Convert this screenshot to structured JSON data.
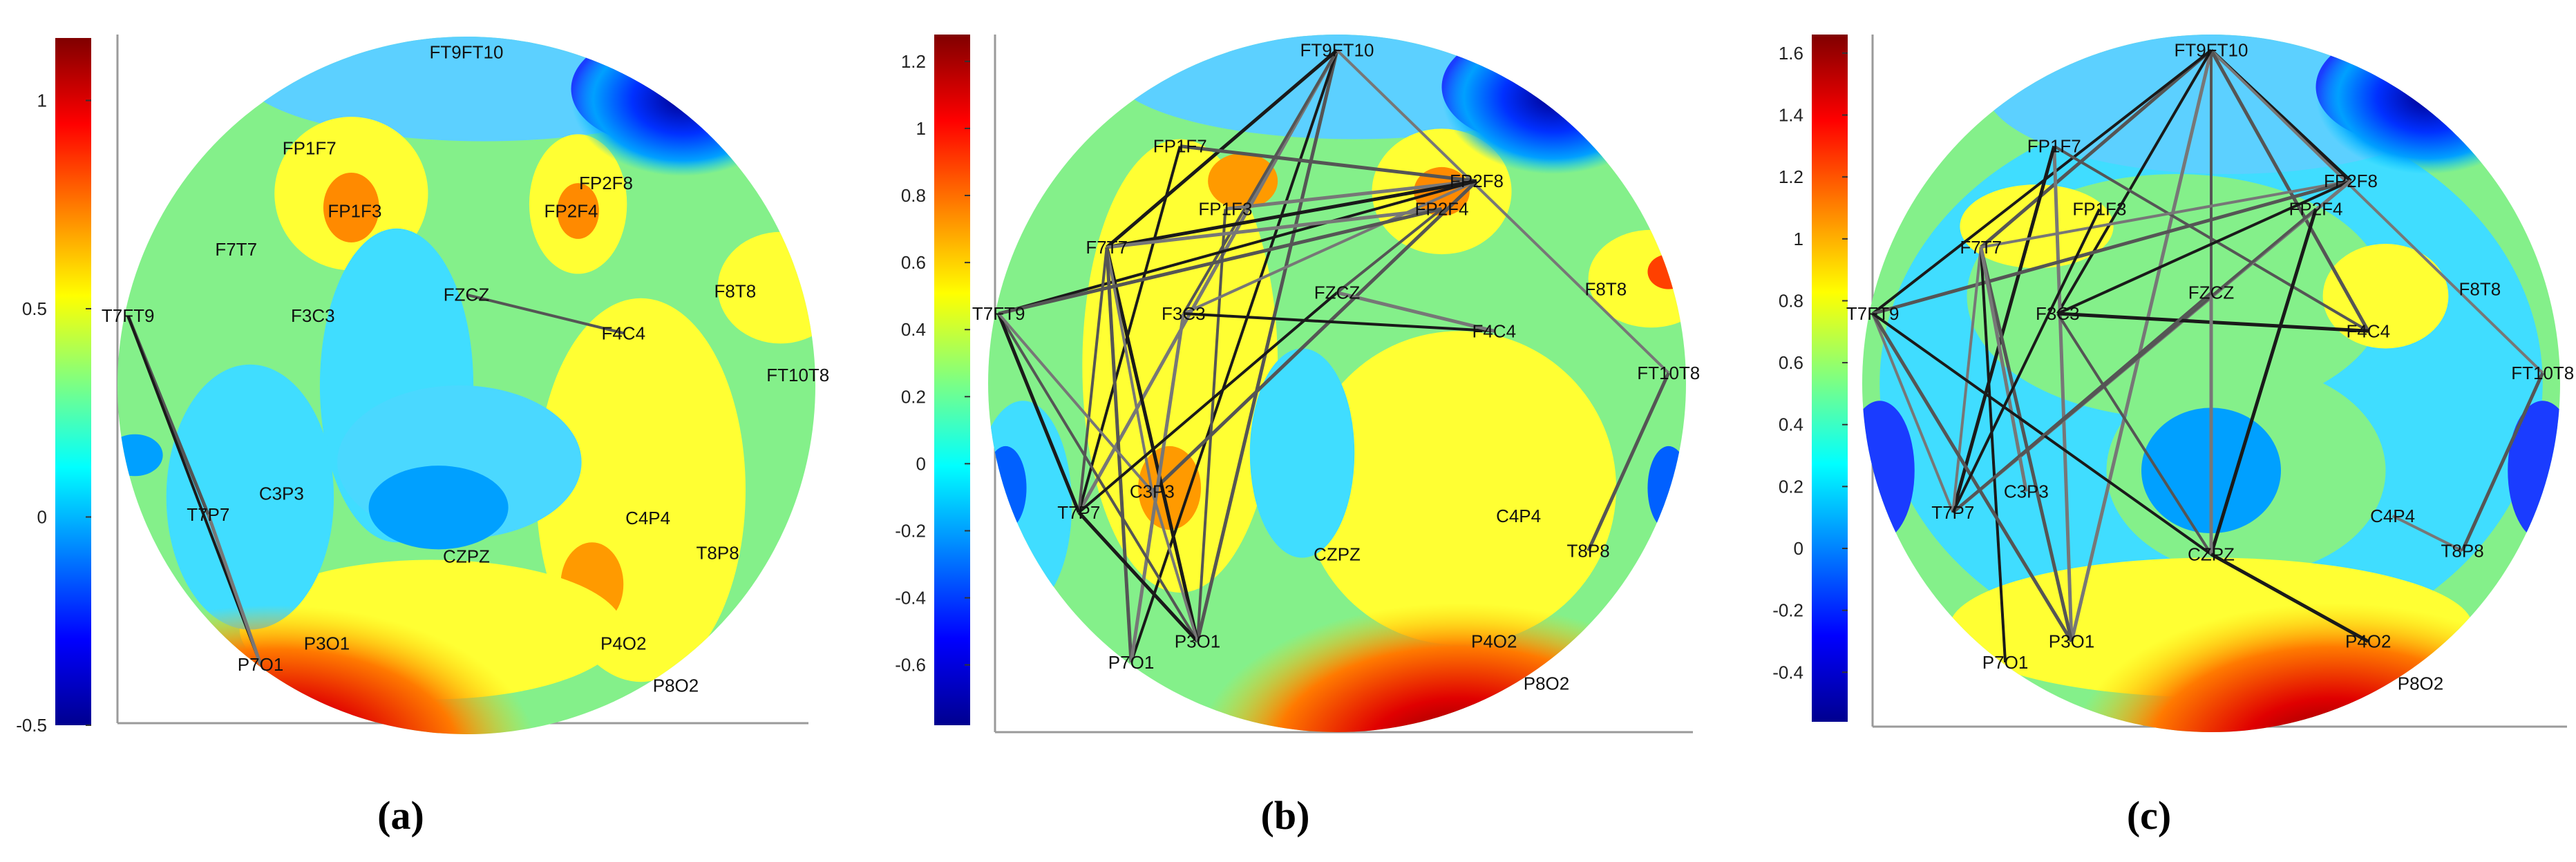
{
  "colormap": [
    "#00008F",
    "#0000FF",
    "#0080FF",
    "#00FFFF",
    "#80FF80",
    "#FFFF00",
    "#FF8000",
    "#FF0000",
    "#800000"
  ],
  "panels": [
    {
      "caption": "(a)",
      "colorbar": {
        "min": -0.5,
        "max": 1.15,
        "ticks": [
          "1",
          "0.5",
          "0",
          "-0.5"
        ],
        "tick_values": [
          1,
          0.5,
          0,
          -0.5
        ]
      },
      "electrodes": [
        "FT9FT10",
        "FP1F7",
        "FP2F8",
        "FP1F3",
        "FP2F4",
        "F7T7",
        "F8T8",
        "T7FT9",
        "F3C3",
        "FZCZ",
        "F4C4",
        "FT10T8",
        "T7P7",
        "C3P3",
        "C4P4",
        "T8P8",
        "CZPZ",
        "P3O1",
        "P4O2",
        "P7O1",
        "P8O2"
      ],
      "connections": [
        [
          "T7FT9",
          "T7P7"
        ],
        [
          "T7FT9",
          "P7O1"
        ],
        [
          "T7P7",
          "P7O1"
        ],
        [
          "FZCZ",
          "F4C4"
        ]
      ]
    },
    {
      "caption": "(b)",
      "colorbar": {
        "min": -0.78,
        "max": 1.28,
        "ticks": [
          "1.2",
          "1",
          "0.8",
          "0.6",
          "0.4",
          "0.2",
          "0",
          "-0.2",
          "-0.4",
          "-0.6"
        ],
        "tick_values": [
          1.2,
          1,
          0.8,
          0.6,
          0.4,
          0.2,
          0,
          -0.2,
          -0.4,
          -0.6
        ]
      },
      "electrodes": [
        "FT9FT10",
        "FP1F7",
        "FP1F3",
        "FP2F8",
        "FP2F4",
        "F7T7",
        "F8T8",
        "T7FT9",
        "F3C3",
        "FZCZ",
        "F4C4",
        "FT10T8",
        "T7P7",
        "C3P3",
        "C4P4",
        "T8P8",
        "CZPZ",
        "P3O1",
        "P4O2",
        "P7O1",
        "P8O2"
      ],
      "connections": [
        [
          "FT9FT10",
          "P3O1"
        ],
        [
          "FT9FT10",
          "P7O1"
        ],
        [
          "FT9FT10",
          "T7P7"
        ],
        [
          "FT9FT10",
          "F3C3"
        ],
        [
          "FT9FT10",
          "F7T7"
        ],
        [
          "FT9FT10",
          "FT10T8"
        ],
        [
          "FP1F7",
          "FP2F8"
        ],
        [
          "FP1F7",
          "T7P7"
        ],
        [
          "FP1F3",
          "FP2F8"
        ],
        [
          "FP1F3",
          "P3O1"
        ],
        [
          "FP2F8",
          "F7T7"
        ],
        [
          "FP2F8",
          "F3C3"
        ],
        [
          "FP2F8",
          "C3P3"
        ],
        [
          "FP2F8",
          "T7FT9"
        ],
        [
          "F7T7",
          "FP2F4"
        ],
        [
          "F7T7",
          "T7P7"
        ],
        [
          "F7T7",
          "P3O1"
        ],
        [
          "F7T7",
          "C3P3"
        ],
        [
          "F7T7",
          "P7O1"
        ],
        [
          "F3C3",
          "F4C4"
        ],
        [
          "F3C3",
          "P7O1"
        ],
        [
          "T7FT9",
          "P3O1"
        ],
        [
          "T7FT9",
          "T7P7"
        ],
        [
          "T7FT9",
          "C3P3"
        ],
        [
          "T7FT9",
          "FP2F4"
        ],
        [
          "FZCZ",
          "T7P7"
        ],
        [
          "FZCZ",
          "F4C4"
        ],
        [
          "FZCZ",
          "FP2F4"
        ],
        [
          "T7P7",
          "P3O1"
        ],
        [
          "C3P3",
          "P3O1"
        ],
        [
          "FT10T8",
          "T8P8"
        ]
      ]
    },
    {
      "caption": "(c)",
      "colorbar": {
        "min": -0.56,
        "max": 1.66,
        "ticks": [
          "1.6",
          "1.4",
          "1.2",
          "1",
          "0.8",
          "0.6",
          "0.4",
          "0.2",
          "0",
          "-0.2",
          "-0.4"
        ],
        "tick_values": [
          1.6,
          1.4,
          1.2,
          1,
          0.8,
          0.6,
          0.4,
          0.2,
          0,
          -0.2,
          -0.4
        ]
      },
      "electrodes": [
        "FT9FT10",
        "FP1F7",
        "FP1F3",
        "FP2F8",
        "FP2F4",
        "F7T7",
        "F8T8",
        "T7FT9",
        "F3C3",
        "FZCZ",
        "F4C4",
        "FT10T8",
        "T7P7",
        "C3P3",
        "C4P4",
        "T8P8",
        "CZPZ",
        "P3O1",
        "P4O2",
        "P7O1",
        "P8O2"
      ],
      "connections": [
        [
          "FT9FT10",
          "F7T7"
        ],
        [
          "FT9FT10",
          "T7FT9"
        ],
        [
          "FT9FT10",
          "P3O1"
        ],
        [
          "FT9FT10",
          "CZPZ"
        ],
        [
          "FT9FT10",
          "FP2F8"
        ],
        [
          "FT9FT10",
          "FT10T8"
        ],
        [
          "FT9FT10",
          "F4C4"
        ],
        [
          "FT9FT10",
          "F3C3"
        ],
        [
          "FP1F7",
          "P3O1"
        ],
        [
          "FP1F7",
          "F4C4"
        ],
        [
          "FP1F7",
          "T7P7"
        ],
        [
          "FP2F8",
          "F7T7"
        ],
        [
          "FP2F8",
          "T7FT9"
        ],
        [
          "FP2F8",
          "F3C3"
        ],
        [
          "FP2F8",
          "T7P7"
        ],
        [
          "FP2F4",
          "T7P7"
        ],
        [
          "FP2F4",
          "CZPZ"
        ],
        [
          "F7T7",
          "T7P7"
        ],
        [
          "F7T7",
          "P3O1"
        ],
        [
          "F7T7",
          "P7O1"
        ],
        [
          "F7T7",
          "C3P3"
        ],
        [
          "F3C3",
          "CZPZ"
        ],
        [
          "F3C3",
          "F4C4"
        ],
        [
          "T7FT9",
          "T7P7"
        ],
        [
          "T7FT9",
          "P3O1"
        ],
        [
          "T7FT9",
          "CZPZ"
        ],
        [
          "FZCZ",
          "CZPZ"
        ],
        [
          "FZCZ",
          "T7P7"
        ],
        [
          "CZPZ",
          "P4O2"
        ],
        [
          "C4P4",
          "T8P8"
        ],
        [
          "FT10T8",
          "T8P8"
        ],
        [
          "FP1F3",
          "T7P7"
        ]
      ]
    }
  ]
}
